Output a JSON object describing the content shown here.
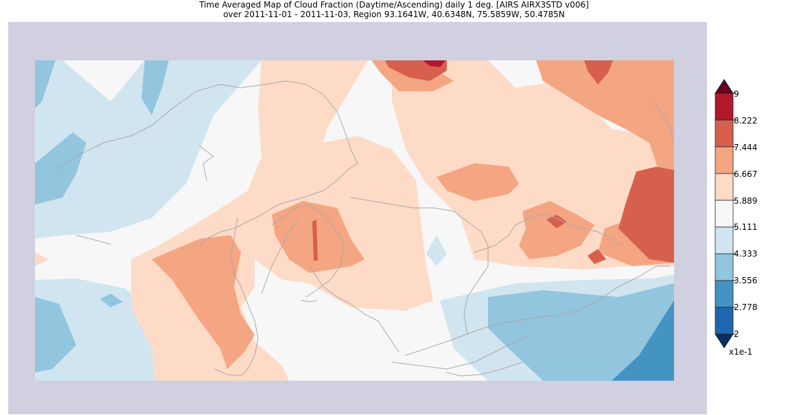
{
  "title": {
    "line1": "Time Averaged Map of Cloud Fraction (Daytime/Ascending) daily 1 deg. [AIRS AIRX3STD v006]",
    "line2": "over 2011-11-01 - 2011-11-03, Region 93.1641W, 40.6348N, 75.5859W, 50.4785N"
  },
  "map": {
    "region": {
      "lon_min": -93.1641,
      "lat_min": 40.6348,
      "lon_max": -75.5859,
      "lat_max": 50.4785
    },
    "colors": {
      "frame": "#d0d0e0",
      "coastline": "#a8a8a8",
      "bins": [
        "#2166ac",
        "#4393c3",
        "#92c5de",
        "#d1e5f0",
        "#f7f7f7",
        "#fddbc7",
        "#f4a582",
        "#d6604d",
        "#b2182b"
      ],
      "over": "#67001f",
      "under": "#053061"
    }
  },
  "colorbar": {
    "ticks": [
      "9",
      "8.222",
      "7.444",
      "6.667",
      "5.889",
      "5.111",
      "4.333",
      "3.556",
      "2.778",
      "2"
    ],
    "multiplier": "x1e-1"
  }
}
